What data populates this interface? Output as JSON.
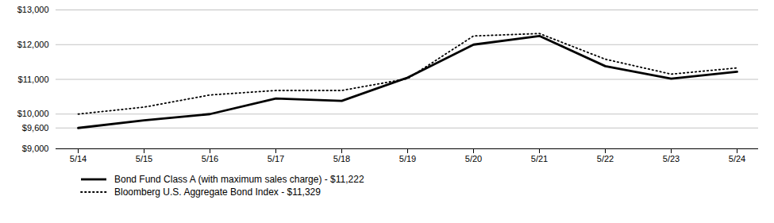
{
  "chart_data": {
    "type": "line",
    "categories": [
      "5/14",
      "5/15",
      "5/16",
      "5/17",
      "5/18",
      "5/19",
      "5/20",
      "5/21",
      "5/22",
      "5/23",
      "5/24"
    ],
    "series": [
      {
        "name": "Bond Fund Class A (with maximum sales charge)  - $11,222",
        "color": "#000000",
        "line_style": "solid",
        "values": [
          9600,
          9820,
          10000,
          10450,
          10380,
          11050,
          12000,
          12250,
          11380,
          11020,
          11222
        ]
      },
      {
        "name": "Bloomberg U.S. Aggregate Bond Index - $11,329",
        "color": "#000000",
        "line_style": "dotted",
        "values": [
          10000,
          10200,
          10550,
          10680,
          10680,
          11020,
          12250,
          12320,
          11580,
          11150,
          11329
        ]
      }
    ],
    "ylim": [
      9000,
      13000
    ],
    "yticks": [
      {
        "value": 9000,
        "label": "$9,000"
      },
      {
        "value": 9600,
        "label": "$9,600"
      },
      {
        "value": 10000,
        "label": "$10,000"
      },
      {
        "value": 11000,
        "label": "$11,000"
      },
      {
        "value": 12000,
        "label": "$12,000"
      },
      {
        "value": 13000,
        "label": "$13,000"
      }
    ],
    "grid": true,
    "legend": "bottom"
  }
}
